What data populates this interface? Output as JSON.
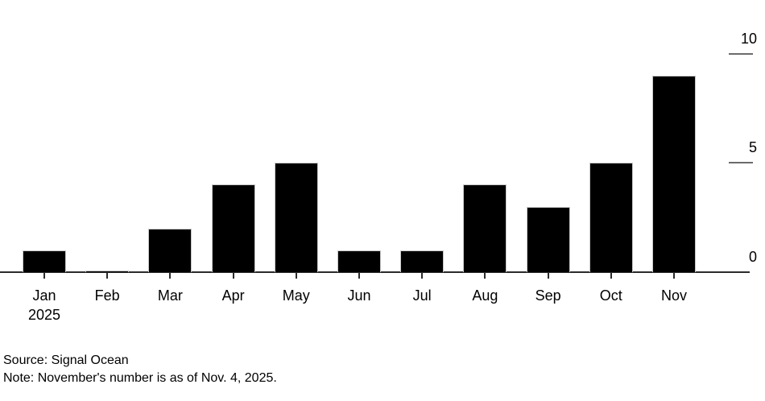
{
  "chart_data": {
    "type": "bar",
    "categories": [
      "Jan",
      "Feb",
      "Mar",
      "Apr",
      "May",
      "Jun",
      "Jul",
      "Aug",
      "Sep",
      "Oct",
      "Nov"
    ],
    "x_axis_year_label": "2025",
    "values": [
      1,
      0,
      2,
      4,
      5,
      1,
      1,
      4,
      3,
      5,
      9
    ],
    "title": "",
    "xlabel": "",
    "ylabel": "",
    "ylim": [
      0,
      10
    ],
    "yticks": [
      0,
      5,
      10
    ],
    "y_axis_side": "right",
    "grid": false,
    "legend": false,
    "bar_color": "#000000",
    "axis_color": "#2b2b2b",
    "source": "Source: Signal Ocean",
    "note": "Note: November's number is as of Nov. 4, 2025."
  }
}
